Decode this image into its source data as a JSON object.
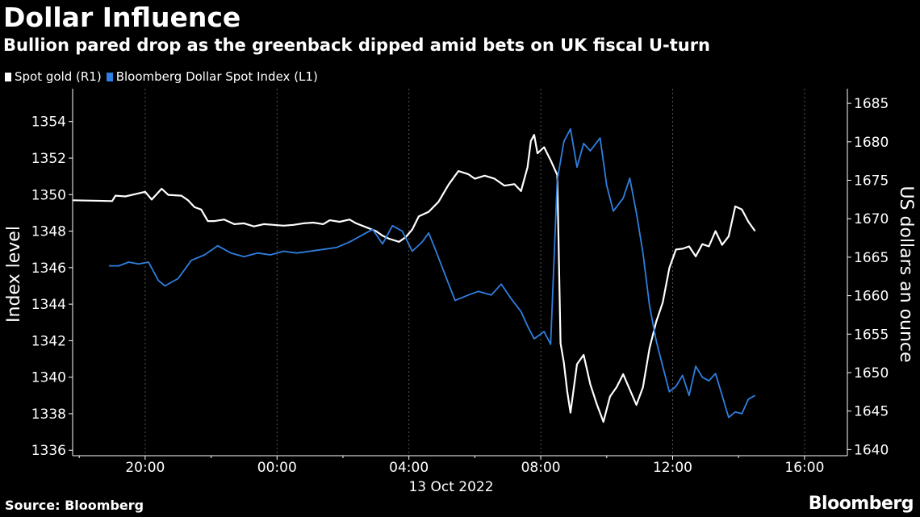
{
  "header": {
    "title": "Dollar Influence",
    "subtitle": "Bullion pared drop as the greenback dipped amid bets on UK fiscal U-turn"
  },
  "legend": {
    "gold_label": "Spot gold (R1)",
    "dollar_label": "Bloomberg Dollar Spot Index (L1)"
  },
  "footer": {
    "source": "Source: Bloomberg",
    "brand": "Bloomberg"
  },
  "colors": {
    "background": "#000000",
    "gold": "#ffffff",
    "dollar": "#2f7fe0",
    "grid": "#555555"
  },
  "chart_data": {
    "type": "line",
    "title": "Dollar Influence",
    "xlabel": "13 Oct 2022",
    "ylabel_left": "Index level",
    "ylabel_right": "US dollars an ounce",
    "x_unit": "hours relative to 13 Oct 2022 00:00",
    "xlim": [
      -6.2,
      17.3
    ],
    "xticks": [
      {
        "x": -4,
        "label": "20:00"
      },
      {
        "x": 0,
        "label": "00:00"
      },
      {
        "x": 4,
        "label": "04:00"
      },
      {
        "x": 8,
        "label": "08:00"
      },
      {
        "x": 12,
        "label": "12:00"
      },
      {
        "x": 16,
        "label": "16:00"
      }
    ],
    "date_label": "13 Oct 2022",
    "ylim_left": [
      1335.7,
      1355.8
    ],
    "yticks_left": [
      1336,
      1338,
      1340,
      1342,
      1344,
      1346,
      1348,
      1350,
      1352,
      1354
    ],
    "ylim_right": [
      1639.2,
      1686.9
    ],
    "yticks_right": [
      1640,
      1645,
      1650,
      1655,
      1660,
      1665,
      1670,
      1675,
      1680,
      1685
    ],
    "series": [
      {
        "name": "Spot gold (R1)",
        "axis": "right",
        "color": "#ffffff",
        "points": [
          [
            -6.2,
            1672.4
          ],
          [
            -5.0,
            1672.3
          ],
          [
            -4.9,
            1673.0
          ],
          [
            -4.6,
            1672.9
          ],
          [
            -4.3,
            1673.2
          ],
          [
            -4.0,
            1673.5
          ],
          [
            -3.8,
            1672.5
          ],
          [
            -3.5,
            1673.9
          ],
          [
            -3.3,
            1673.1
          ],
          [
            -2.9,
            1673.0
          ],
          [
            -2.7,
            1672.4
          ],
          [
            -2.5,
            1671.5
          ],
          [
            -2.3,
            1671.2
          ],
          [
            -2.1,
            1669.7
          ],
          [
            -1.9,
            1669.7
          ],
          [
            -1.6,
            1669.9
          ],
          [
            -1.3,
            1669.3
          ],
          [
            -1.0,
            1669.4
          ],
          [
            -0.7,
            1669.0
          ],
          [
            -0.4,
            1669.3
          ],
          [
            -0.1,
            1669.2
          ],
          [
            0.2,
            1669.1
          ],
          [
            0.5,
            1669.2
          ],
          [
            0.8,
            1669.4
          ],
          [
            1.1,
            1669.5
          ],
          [
            1.4,
            1669.3
          ],
          [
            1.6,
            1669.8
          ],
          [
            1.9,
            1669.6
          ],
          [
            2.2,
            1669.9
          ],
          [
            2.4,
            1669.4
          ],
          [
            2.7,
            1668.9
          ],
          [
            3.0,
            1668.4
          ],
          [
            3.2,
            1667.8
          ],
          [
            3.4,
            1667.4
          ],
          [
            3.7,
            1667.0
          ],
          [
            3.9,
            1667.6
          ],
          [
            4.1,
            1668.6
          ],
          [
            4.3,
            1670.3
          ],
          [
            4.6,
            1670.9
          ],
          [
            4.9,
            1672.2
          ],
          [
            5.2,
            1674.4
          ],
          [
            5.5,
            1676.2
          ],
          [
            5.8,
            1675.8
          ],
          [
            6.0,
            1675.2
          ],
          [
            6.3,
            1675.6
          ],
          [
            6.6,
            1675.2
          ],
          [
            6.9,
            1674.3
          ],
          [
            7.2,
            1674.5
          ],
          [
            7.4,
            1673.6
          ],
          [
            7.6,
            1676.7
          ],
          [
            7.7,
            1680.1
          ],
          [
            7.8,
            1680.9
          ],
          [
            7.9,
            1678.5
          ],
          [
            8.1,
            1679.3
          ],
          [
            8.3,
            1677.6
          ],
          [
            8.5,
            1675.7
          ],
          [
            8.6,
            1653.8
          ],
          [
            8.7,
            1651.3
          ],
          [
            8.8,
            1647.6
          ],
          [
            8.9,
            1644.8
          ],
          [
            9.1,
            1651.1
          ],
          [
            9.3,
            1652.3
          ],
          [
            9.5,
            1648.5
          ],
          [
            9.7,
            1645.9
          ],
          [
            9.9,
            1643.6
          ],
          [
            10.1,
            1646.9
          ],
          [
            10.3,
            1648.1
          ],
          [
            10.5,
            1649.8
          ],
          [
            10.7,
            1647.8
          ],
          [
            10.9,
            1645.8
          ],
          [
            11.1,
            1648.1
          ],
          [
            11.3,
            1653.2
          ],
          [
            11.5,
            1656.6
          ],
          [
            11.7,
            1659.1
          ],
          [
            11.9,
            1663.6
          ],
          [
            12.1,
            1666.0
          ],
          [
            12.3,
            1666.1
          ],
          [
            12.5,
            1666.4
          ],
          [
            12.7,
            1665.1
          ],
          [
            12.9,
            1666.7
          ],
          [
            13.1,
            1666.4
          ],
          [
            13.3,
            1668.4
          ],
          [
            13.5,
            1666.6
          ],
          [
            13.7,
            1667.7
          ],
          [
            13.9,
            1671.6
          ],
          [
            14.1,
            1671.2
          ],
          [
            14.3,
            1669.6
          ],
          [
            14.5,
            1668.4
          ]
        ]
      },
      {
        "name": "Bloomberg Dollar Spot Index (L1)",
        "axis": "left",
        "color": "#2f7fe0",
        "points": [
          [
            -5.1,
            1346.1
          ],
          [
            -4.8,
            1346.1
          ],
          [
            -4.5,
            1346.3
          ],
          [
            -4.2,
            1346.2
          ],
          [
            -3.9,
            1346.3
          ],
          [
            -3.6,
            1345.3
          ],
          [
            -3.4,
            1345.0
          ],
          [
            -3.0,
            1345.4
          ],
          [
            -2.6,
            1346.4
          ],
          [
            -2.2,
            1346.7
          ],
          [
            -1.8,
            1347.2
          ],
          [
            -1.4,
            1346.8
          ],
          [
            -1.0,
            1346.6
          ],
          [
            -0.6,
            1346.8
          ],
          [
            -0.2,
            1346.7
          ],
          [
            0.2,
            1346.9
          ],
          [
            0.6,
            1346.8
          ],
          [
            1.0,
            1346.9
          ],
          [
            1.4,
            1347.0
          ],
          [
            1.8,
            1347.1
          ],
          [
            2.2,
            1347.4
          ],
          [
            2.6,
            1347.8
          ],
          [
            2.9,
            1348.1
          ],
          [
            3.2,
            1347.3
          ],
          [
            3.5,
            1348.3
          ],
          [
            3.8,
            1348.0
          ],
          [
            4.1,
            1346.9
          ],
          [
            4.4,
            1347.4
          ],
          [
            4.6,
            1347.9
          ],
          [
            4.8,
            1347.0
          ],
          [
            5.1,
            1345.6
          ],
          [
            5.4,
            1344.2
          ],
          [
            5.8,
            1344.5
          ],
          [
            6.1,
            1344.7
          ],
          [
            6.5,
            1344.5
          ],
          [
            6.8,
            1345.1
          ],
          [
            7.1,
            1344.3
          ],
          [
            7.4,
            1343.6
          ],
          [
            7.6,
            1342.8
          ],
          [
            7.8,
            1342.1
          ],
          [
            8.1,
            1342.5
          ],
          [
            8.3,
            1341.8
          ],
          [
            8.5,
            1350.8
          ],
          [
            8.7,
            1352.9
          ],
          [
            8.9,
            1353.6
          ],
          [
            9.1,
            1351.5
          ],
          [
            9.3,
            1352.8
          ],
          [
            9.5,
            1352.4
          ],
          [
            9.8,
            1353.1
          ],
          [
            10.0,
            1350.5
          ],
          [
            10.2,
            1349.1
          ],
          [
            10.5,
            1349.8
          ],
          [
            10.7,
            1350.9
          ],
          [
            10.9,
            1349.0
          ],
          [
            11.1,
            1346.8
          ],
          [
            11.3,
            1343.9
          ],
          [
            11.5,
            1342.0
          ],
          [
            11.7,
            1340.6
          ],
          [
            11.9,
            1339.2
          ],
          [
            12.1,
            1339.5
          ],
          [
            12.3,
            1340.1
          ],
          [
            12.5,
            1339.0
          ],
          [
            12.7,
            1340.6
          ],
          [
            12.9,
            1340.0
          ],
          [
            13.1,
            1339.8
          ],
          [
            13.3,
            1340.2
          ],
          [
            13.5,
            1339.0
          ],
          [
            13.7,
            1337.8
          ],
          [
            13.9,
            1338.1
          ],
          [
            14.1,
            1338.0
          ],
          [
            14.3,
            1338.8
          ],
          [
            14.5,
            1339.0
          ]
        ]
      }
    ]
  }
}
